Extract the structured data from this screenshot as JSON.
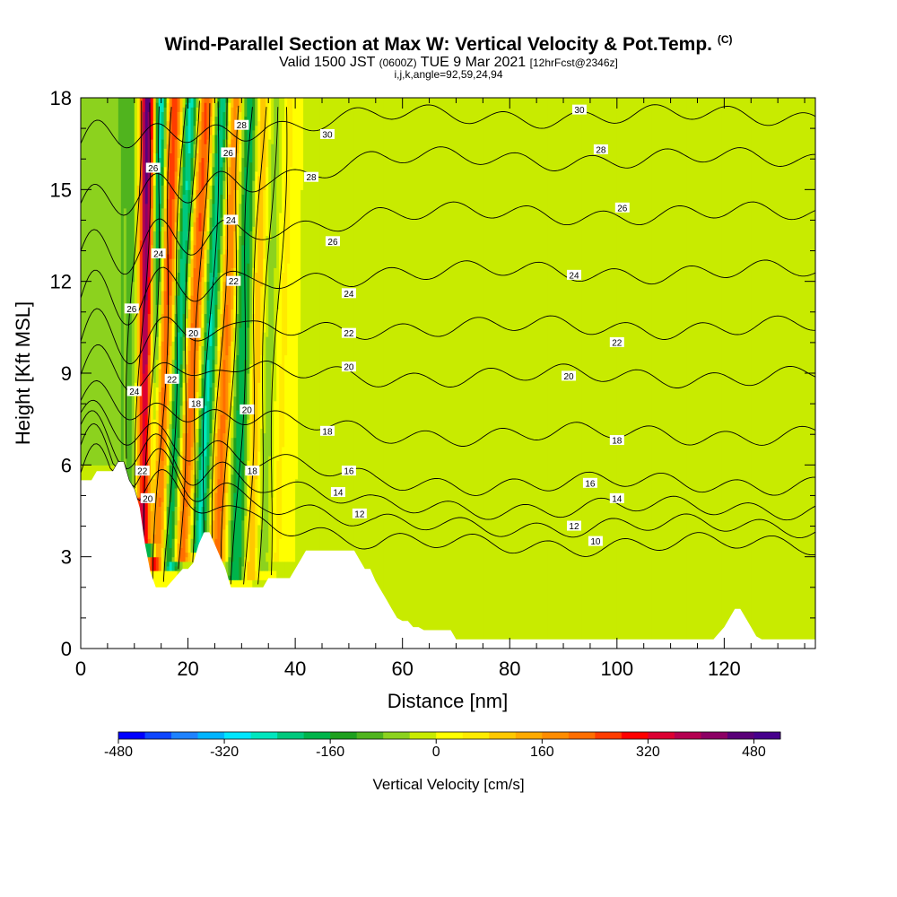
{
  "header": {
    "title_main": "Wind-Parallel Section at Max W: Vertical Velocity & Pot.Temp.",
    "title_mark": "(C)",
    "valid_prefix": "Valid 1500 JST",
    "valid_utc": "(0600Z)",
    "valid_date": "TUE 9 Mar 2021",
    "forecast": "[12hrFcst@2346z]",
    "indices": "i,j,k,angle=92,59,24,94"
  },
  "chart_data": {
    "type": "heatmap",
    "xlabel": "Distance [nm]",
    "ylabel": "Height [Kft MSL]",
    "xlim": [
      0,
      137
    ],
    "ylim": [
      0,
      18
    ],
    "x_ticks": [
      0,
      20,
      40,
      60,
      80,
      100,
      120
    ],
    "y_ticks": [
      0,
      3,
      6,
      9,
      12,
      15,
      18
    ],
    "colorbar": {
      "title": "Vertical Velocity [cm/s]",
      "min": -480,
      "max": 520,
      "step": 40,
      "tick_values": [
        -480,
        -320,
        -160,
        0,
        160,
        320,
        480
      ],
      "tick_labels": [
        "-480",
        "-320",
        "-160",
        "0",
        "160",
        "320",
        "480"
      ],
      "colors": [
        "#0000ff",
        "#0f46ff",
        "#1e82ff",
        "#00b4ff",
        "#00e6ff",
        "#00e6be",
        "#00c87d",
        "#00b44b",
        "#1ea01e",
        "#50b41e",
        "#8cd21e",
        "#c8eb00",
        "#ffff00",
        "#ffeb00",
        "#ffc800",
        "#ffaa00",
        "#ff8c00",
        "#ff6e00",
        "#ff3c00",
        "#ff0000",
        "#dc0032",
        "#b40050",
        "#8c0064",
        "#5a0078",
        "#46008c"
      ]
    },
    "terrain_kft": [
      {
        "x": 0,
        "z": 5.5
      },
      {
        "x": 1,
        "z": 5.5
      },
      {
        "x": 2,
        "z": 5.5
      },
      {
        "x": 3,
        "z": 5.8
      },
      {
        "x": 4,
        "z": 5.8
      },
      {
        "x": 5,
        "z": 5.8
      },
      {
        "x": 6,
        "z": 5.8
      },
      {
        "x": 7,
        "z": 6.1
      },
      {
        "x": 8,
        "z": 6.1
      },
      {
        "x": 9,
        "z": 5.5
      },
      {
        "x": 10,
        "z": 5.2
      },
      {
        "x": 11,
        "z": 4.6
      },
      {
        "x": 12,
        "z": 3.4
      },
      {
        "x": 13,
        "z": 2.5
      },
      {
        "x": 14,
        "z": 2.0
      },
      {
        "x": 15,
        "z": 2.0
      },
      {
        "x": 16,
        "z": 2.0
      },
      {
        "x": 17,
        "z": 2.2
      },
      {
        "x": 18,
        "z": 2.4
      },
      {
        "x": 19,
        "z": 2.6
      },
      {
        "x": 20,
        "z": 2.6
      },
      {
        "x": 21,
        "z": 2.8
      },
      {
        "x": 22,
        "z": 3.4
      },
      {
        "x": 23,
        "z": 3.8
      },
      {
        "x": 24,
        "z": 3.8
      },
      {
        "x": 25,
        "z": 3.4
      },
      {
        "x": 26,
        "z": 3.0
      },
      {
        "x": 27,
        "z": 2.6
      },
      {
        "x": 28,
        "z": 2.0
      },
      {
        "x": 29,
        "z": 2.0
      },
      {
        "x": 30,
        "z": 2.0
      },
      {
        "x": 31,
        "z": 2.0
      },
      {
        "x": 32,
        "z": 2.0
      },
      {
        "x": 33,
        "z": 2.0
      },
      {
        "x": 34,
        "z": 2.0
      },
      {
        "x": 35,
        "z": 2.3
      },
      {
        "x": 36,
        "z": 2.3
      },
      {
        "x": 37,
        "z": 2.3
      },
      {
        "x": 38,
        "z": 2.3
      },
      {
        "x": 39,
        "z": 2.3
      },
      {
        "x": 40,
        "z": 2.6
      },
      {
        "x": 41,
        "z": 2.9
      },
      {
        "x": 42,
        "z": 3.2
      },
      {
        "x": 43,
        "z": 3.2
      },
      {
        "x": 44,
        "z": 3.2
      },
      {
        "x": 45,
        "z": 3.2
      },
      {
        "x": 46,
        "z": 3.2
      },
      {
        "x": 47,
        "z": 3.2
      },
      {
        "x": 48,
        "z": 3.2
      },
      {
        "x": 49,
        "z": 3.2
      },
      {
        "x": 50,
        "z": 3.2
      },
      {
        "x": 51,
        "z": 3.2
      },
      {
        "x": 52,
        "z": 2.9
      },
      {
        "x": 53,
        "z": 2.6
      },
      {
        "x": 54,
        "z": 2.6
      },
      {
        "x": 55,
        "z": 2.2
      },
      {
        "x": 56,
        "z": 1.9
      },
      {
        "x": 57,
        "z": 1.6
      },
      {
        "x": 58,
        "z": 1.3
      },
      {
        "x": 59,
        "z": 1.0
      },
      {
        "x": 60,
        "z": 0.9
      },
      {
        "x": 61,
        "z": 0.9
      },
      {
        "x": 62,
        "z": 0.7
      },
      {
        "x": 63,
        "z": 0.7
      },
      {
        "x": 64,
        "z": 0.6
      },
      {
        "x": 65,
        "z": 0.6
      },
      {
        "x": 66,
        "z": 0.6
      },
      {
        "x": 67,
        "z": 0.6
      },
      {
        "x": 68,
        "z": 0.6
      },
      {
        "x": 69,
        "z": 0.6
      },
      {
        "x": 70,
        "z": 0.3
      },
      {
        "x": 71,
        "z": 0.3
      },
      {
        "x": 72,
        "z": 0.3
      },
      {
        "x": 80,
        "z": 0.3
      },
      {
        "x": 90,
        "z": 0.3
      },
      {
        "x": 100,
        "z": 0.3
      },
      {
        "x": 110,
        "z": 0.3
      },
      {
        "x": 118,
        "z": 0.3
      },
      {
        "x": 119,
        "z": 0.5
      },
      {
        "x": 120,
        "z": 0.7
      },
      {
        "x": 121,
        "z": 1.0
      },
      {
        "x": 122,
        "z": 1.3
      },
      {
        "x": 123,
        "z": 1.3
      },
      {
        "x": 124,
        "z": 1.0
      },
      {
        "x": 125,
        "z": 0.7
      },
      {
        "x": 126,
        "z": 0.4
      },
      {
        "x": 127,
        "z": 0.3
      },
      {
        "x": 130,
        "z": 0.3
      },
      {
        "x": 137,
        "z": 0.3
      }
    ],
    "updraft_bands": [
      {
        "x_top": 12.5,
        "x_bot": 12.0,
        "z_bot": 3.5,
        "w": 500,
        "width_nm": 1.6
      },
      {
        "x_top": 17.5,
        "x_bot": 14.0,
        "z_bot": 2.6,
        "w": 300,
        "width_nm": 2.0
      },
      {
        "x_top": 23.5,
        "x_bot": 18.5,
        "z_bot": 2.8,
        "w": 260,
        "width_nm": 1.8
      },
      {
        "x_top": 29.0,
        "x_bot": 25.5,
        "z_bot": 2.8,
        "w": 220,
        "width_nm": 1.6
      },
      {
        "x_top": 34.0,
        "x_bot": 31.5,
        "z_bot": 2.2,
        "w": 140,
        "width_nm": 1.3
      },
      {
        "x_top": 39.0,
        "x_bot": 36.5,
        "z_bot": 2.8,
        "w": 50,
        "width_nm": 1.4
      }
    ],
    "downdraft_bands": [
      {
        "x_top": 9.5,
        "x_bot": 10.0,
        "z_bot": 5.0,
        "w": -120,
        "width_nm": 2.2
      },
      {
        "x_top": 15.0,
        "x_bot": 12.8,
        "z_bot": 3.0,
        "w": -380,
        "width_nm": 1.4
      },
      {
        "x_top": 20.5,
        "x_bot": 16.5,
        "z_bot": 2.5,
        "w": -300,
        "width_nm": 1.6
      },
      {
        "x_top": 26.5,
        "x_bot": 22.0,
        "z_bot": 3.2,
        "w": -260,
        "width_nm": 1.5
      },
      {
        "x_top": 31.5,
        "x_bot": 29.0,
        "z_bot": 2.2,
        "w": -200,
        "width_nm": 1.8
      },
      {
        "x_top": 36.5,
        "x_bot": 34.0,
        "z_bot": 2.5,
        "w": -60,
        "width_nm": 1.5
      }
    ],
    "weak_streaks": [
      {
        "x": 45,
        "w": -20,
        "width_nm": 2.2
      },
      {
        "x": 52,
        "w": -15,
        "width_nm": 2.5
      },
      {
        "x": 58,
        "w": -25,
        "width_nm": 3.5
      },
      {
        "x": 66,
        "w": -20,
        "width_nm": 2.5
      },
      {
        "x": 73,
        "w": -25,
        "width_nm": 3.0
      },
      {
        "x": 84,
        "w": -20,
        "width_nm": 2.5
      },
      {
        "x": 90,
        "w": -25,
        "width_nm": 3.0
      },
      {
        "x": 99,
        "w": -20,
        "width_nm": 2.5
      },
      {
        "x": 106,
        "w": -25,
        "width_nm": 3.0
      },
      {
        "x": 113,
        "w": -15,
        "width_nm": 2.5
      },
      {
        "x": 120,
        "w": -25,
        "width_nm": 3.0
      },
      {
        "x": 129,
        "w": -20,
        "width_nm": 2.5
      }
    ],
    "low_level_layer": {
      "z_top": 3.6,
      "w": -20
    },
    "pot_temp_contours": {
      "levels": [
        10,
        12,
        14,
        16,
        18,
        20,
        22,
        24,
        26,
        28,
        30
      ],
      "far_heights_kft": [
        3.4,
        4.0,
        4.6,
        5.4,
        7.0,
        8.9,
        10.5,
        12.3,
        14.2,
        16.0,
        17.4
      ],
      "near_heights_kft": [
        5.7,
        6.3,
        6.9,
        7.5,
        8.2,
        9.2,
        10.2,
        11.4,
        12.8,
        14.4,
        16.5
      ],
      "labels": [
        {
          "text": "30",
          "x": 46,
          "z": 16.8
        },
        {
          "text": "28",
          "x": 43,
          "z": 15.4
        },
        {
          "text": "26",
          "x": 47,
          "z": 13.3
        },
        {
          "text": "24",
          "x": 50,
          "z": 11.6
        },
        {
          "text": "22",
          "x": 50,
          "z": 10.3
        },
        {
          "text": "20",
          "x": 50,
          "z": 9.2
        },
        {
          "text": "18",
          "x": 46,
          "z": 7.1
        },
        {
          "text": "16",
          "x": 50,
          "z": 5.8
        },
        {
          "text": "14",
          "x": 48,
          "z": 5.1
        },
        {
          "text": "12",
          "x": 52,
          "z": 4.4
        },
        {
          "text": "30",
          "x": 93,
          "z": 17.6
        },
        {
          "text": "28",
          "x": 97,
          "z": 16.3
        },
        {
          "text": "26",
          "x": 101,
          "z": 14.4
        },
        {
          "text": "24",
          "x": 92,
          "z": 12.2
        },
        {
          "text": "22",
          "x": 100,
          "z": 10.0
        },
        {
          "text": "20",
          "x": 91,
          "z": 8.9
        },
        {
          "text": "18",
          "x": 100,
          "z": 6.8
        },
        {
          "text": "16",
          "x": 95,
          "z": 5.4
        },
        {
          "text": "14",
          "x": 100,
          "z": 4.9
        },
        {
          "text": "12",
          "x": 92,
          "z": 4.0
        },
        {
          "text": "10",
          "x": 96,
          "z": 3.5
        },
        {
          "text": "26",
          "x": 13.5,
          "z": 15.7
        },
        {
          "text": "24",
          "x": 14.5,
          "z": 12.9
        },
        {
          "text": "26",
          "x": 9.5,
          "z": 11.1
        },
        {
          "text": "24",
          "x": 10.0,
          "z": 8.4
        },
        {
          "text": "22",
          "x": 11.5,
          "z": 5.8
        },
        {
          "text": "20",
          "x": 12.5,
          "z": 4.9
        },
        {
          "text": "22",
          "x": 17.0,
          "z": 8.8
        },
        {
          "text": "20",
          "x": 21.0,
          "z": 10.3
        },
        {
          "text": "18",
          "x": 21.5,
          "z": 8.0
        },
        {
          "text": "24",
          "x": 28.0,
          "z": 14.0
        },
        {
          "text": "22",
          "x": 28.5,
          "z": 12.0
        },
        {
          "text": "26",
          "x": 27.5,
          "z": 16.2
        },
        {
          "text": "28",
          "x": 30.0,
          "z": 17.1
        },
        {
          "text": "20",
          "x": 31.0,
          "z": 7.8
        },
        {
          "text": "18",
          "x": 32.0,
          "z": 5.8
        }
      ]
    }
  }
}
